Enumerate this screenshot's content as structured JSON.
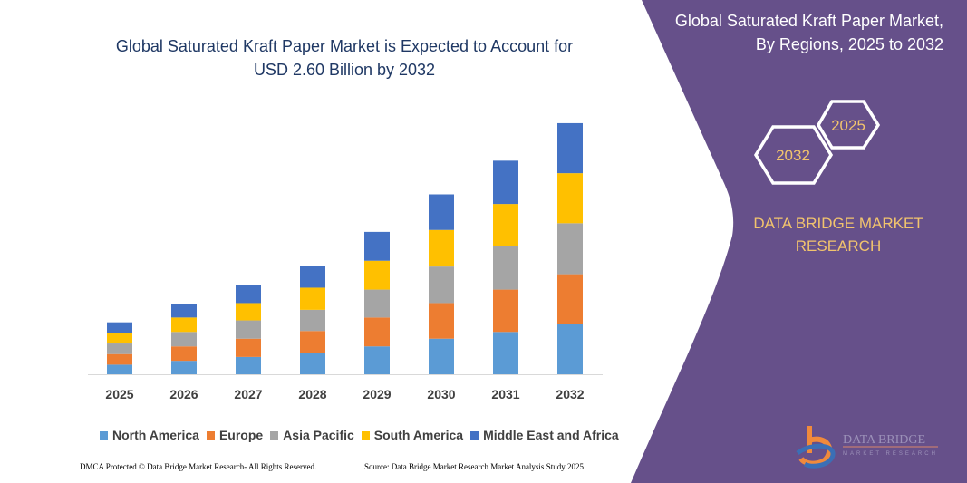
{
  "chart_data": {
    "type": "bar",
    "stacked": true,
    "title": "Global Saturated Kraft Paper Market is Expected to Account for USD 2.60 Billion by 2032",
    "categories": [
      "2025",
      "2026",
      "2027",
      "2028",
      "2029",
      "2030",
      "2031",
      "2032"
    ],
    "series": [
      {
        "name": "North America",
        "color": "#5b9bd5",
        "values": [
          0.1,
          0.14,
          0.18,
          0.22,
          0.29,
          0.37,
          0.44,
          0.52
        ]
      },
      {
        "name": "Europe",
        "color": "#ed7d31",
        "values": [
          0.11,
          0.15,
          0.19,
          0.23,
          0.3,
          0.37,
          0.44,
          0.52
        ]
      },
      {
        "name": "Asia Pacific",
        "color": "#a5a5a5",
        "values": [
          0.11,
          0.15,
          0.19,
          0.22,
          0.29,
          0.38,
          0.45,
          0.53
        ]
      },
      {
        "name": "South America",
        "color": "#ffc000",
        "values": [
          0.11,
          0.15,
          0.18,
          0.23,
          0.3,
          0.38,
          0.44,
          0.52
        ]
      },
      {
        "name": "Middle East and Africa",
        "color": "#4472c4",
        "values": [
          0.11,
          0.14,
          0.19,
          0.23,
          0.3,
          0.37,
          0.45,
          0.52
        ]
      }
    ],
    "ylim": [
      0,
      2.6
    ],
    "grid": false,
    "legend_position": "bottom"
  },
  "title_line1": "Global Saturated Kraft Paper Market is Expected to Account for",
  "title_line2": "USD 2.60 Billion by 2032",
  "side": {
    "title_line1": "Global Saturated Kraft Paper Market,",
    "title_line2": "By Regions, 2025 to 2032",
    "hex_start": "2025",
    "hex_end": "2032",
    "brand_line1": "DATA BRIDGE MARKET",
    "brand_line2": "RESEARCH",
    "logo_text1": "DATA BRIDGE",
    "logo_text2": "MARKET RESEARCH",
    "panel_color": "#66508a",
    "accent_color": "#f2c46d"
  },
  "footer": {
    "left": "DMCA Protected © Data Bridge Market Research-  All Rights Reserved.",
    "right": "Source: Data Bridge Market Research  Market Analysis Study 2025"
  }
}
